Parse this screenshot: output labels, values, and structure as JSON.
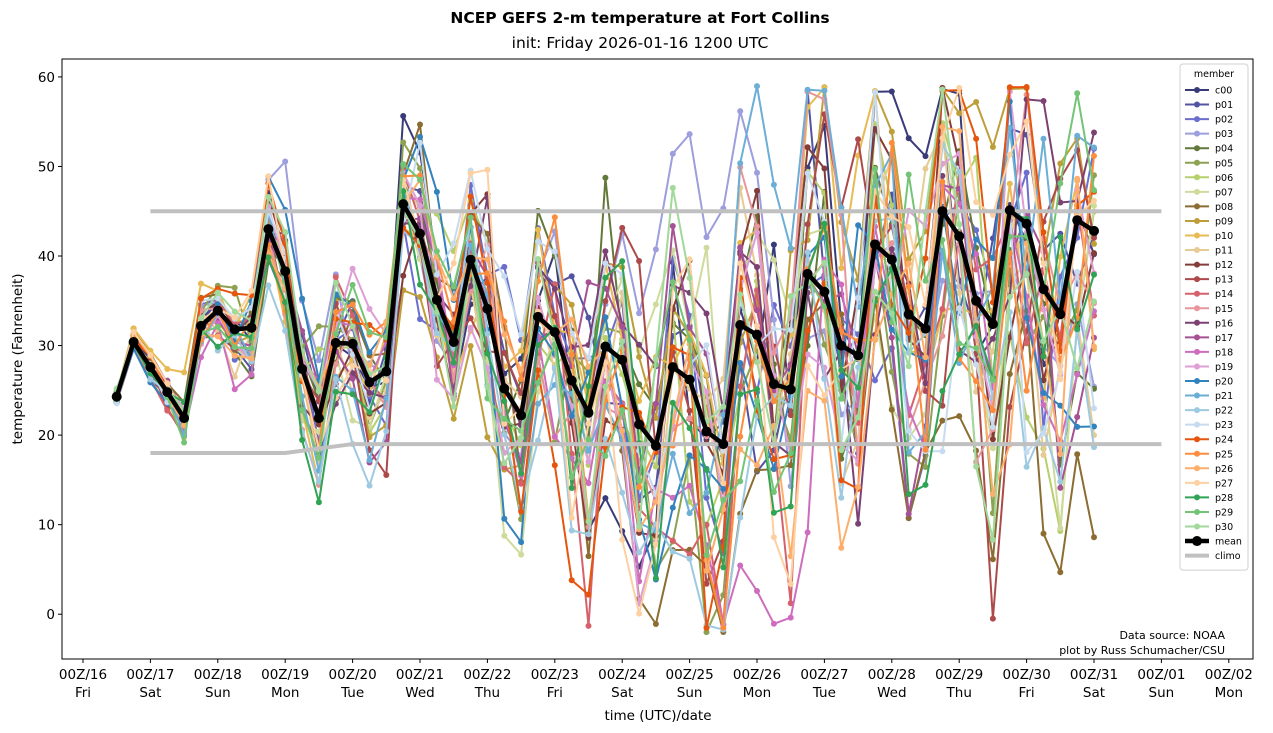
{
  "chart_data": {
    "type": "line",
    "title": "NCEP GEFS 2-m temperature at Fort Collins",
    "subtitle": "init: Friday 2026-01-16 1200 UTC",
    "xlabel": "time (UTC)/date",
    "ylabel": "temperature (Fahrenheit)",
    "ylim": [
      -5,
      62
    ],
    "yticks": [
      0,
      10,
      20,
      30,
      40,
      50,
      60
    ],
    "xlim_days": [
      -0.3,
      17.3
    ],
    "xticks": [
      {
        "day": 0,
        "label": "00Z/16",
        "dow": "Fri"
      },
      {
        "day": 1,
        "label": "00Z/17",
        "dow": "Sat"
      },
      {
        "day": 2,
        "label": "00Z/18",
        "dow": "Sun"
      },
      {
        "day": 3,
        "label": "00Z/19",
        "dow": "Mon"
      },
      {
        "day": 4,
        "label": "00Z/20",
        "dow": "Tue"
      },
      {
        "day": 5,
        "label": "00Z/21",
        "dow": "Wed"
      },
      {
        "day": 6,
        "label": "00Z/22",
        "dow": "Thu"
      },
      {
        "day": 7,
        "label": "00Z/23",
        "dow": "Fri"
      },
      {
        "day": 8,
        "label": "00Z/24",
        "dow": "Sat"
      },
      {
        "day": 9,
        "label": "00Z/25",
        "dow": "Sun"
      },
      {
        "day": 10,
        "label": "00Z/26",
        "dow": "Mon"
      },
      {
        "day": 11,
        "label": "00Z/27",
        "dow": "Tue"
      },
      {
        "day": 12,
        "label": "00Z/28",
        "dow": "Wed"
      },
      {
        "day": 13,
        "label": "00Z/29",
        "dow": "Thu"
      },
      {
        "day": 14,
        "label": "00Z/30",
        "dow": "Fri"
      },
      {
        "day": 15,
        "label": "00Z/31",
        "dow": "Sat"
      },
      {
        "day": 16,
        "label": "00Z/01",
        "dow": "Sun"
      },
      {
        "day": 17,
        "label": "00Z/02",
        "dow": "Mon"
      }
    ],
    "time_start_day": 0.5,
    "time_step_hours": 6,
    "mean": [
      24.3,
      30.4,
      27.6,
      24.8,
      21.9,
      32.2,
      33.9,
      31.8,
      32.0,
      43.0,
      38.3,
      27.4,
      21.9,
      30.3,
      30.2,
      25.9,
      27.1,
      45.8,
      42.5,
      35.1,
      30.4,
      39.6,
      34.1,
      25.2,
      22.2,
      33.2,
      31.5,
      26.1,
      22.5,
      29.9,
      28.4,
      21.2,
      18.8,
      27.6,
      26.2,
      20.4,
      19.0,
      32.3,
      31.2,
      25.7,
      25.1,
      38.0,
      36.0,
      30.0,
      28.9,
      41.3,
      39.6,
      33.5,
      31.9,
      45.0,
      42.2,
      35.0,
      32.4,
      45.1,
      43.6,
      36.3,
      33.5,
      44.0,
      42.8
    ],
    "climo": {
      "name": "climo",
      "color": "#c0c0c0",
      "points": [
        [
          1,
          45.0
        ],
        [
          16,
          45.0
        ]
      ],
      "low_points": [
        [
          1,
          18.0
        ],
        [
          3,
          18.0
        ],
        [
          4,
          19.0
        ],
        [
          16,
          19.0
        ]
      ]
    },
    "members": [
      {
        "name": "c00",
        "color": "#393b79"
      },
      {
        "name": "p01",
        "color": "#5254a3"
      },
      {
        "name": "p02",
        "color": "#6b6ecf"
      },
      {
        "name": "p03",
        "color": "#9c9ede"
      },
      {
        "name": "p04",
        "color": "#637939"
      },
      {
        "name": "p05",
        "color": "#8ca252"
      },
      {
        "name": "p06",
        "color": "#b5cf6b"
      },
      {
        "name": "p07",
        "color": "#cedb9c"
      },
      {
        "name": "p08",
        "color": "#8c6d31"
      },
      {
        "name": "p09",
        "color": "#bd9e39"
      },
      {
        "name": "p10",
        "color": "#e7ba52"
      },
      {
        "name": "p11",
        "color": "#e7cb94"
      },
      {
        "name": "p12",
        "color": "#843c39"
      },
      {
        "name": "p13",
        "color": "#ad494a"
      },
      {
        "name": "p14",
        "color": "#d6616b"
      },
      {
        "name": "p15",
        "color": "#e7969c"
      },
      {
        "name": "p16",
        "color": "#7b4173"
      },
      {
        "name": "p17",
        "color": "#a55194"
      },
      {
        "name": "p18",
        "color": "#ce6dbd"
      },
      {
        "name": "p19",
        "color": "#de9ed6"
      },
      {
        "name": "p20",
        "color": "#3182bd"
      },
      {
        "name": "p21",
        "color": "#6baed6"
      },
      {
        "name": "p22",
        "color": "#9ecae1"
      },
      {
        "name": "p23",
        "color": "#c6dbef"
      },
      {
        "name": "p24",
        "color": "#e6550d"
      },
      {
        "name": "p25",
        "color": "#fd8d3c"
      },
      {
        "name": "p26",
        "color": "#fdae6b"
      },
      {
        "name": "p27",
        "color": "#fdd0a2"
      },
      {
        "name": "p28",
        "color": "#31a354"
      },
      {
        "name": "p29",
        "color": "#74c476"
      },
      {
        "name": "p30",
        "color": "#a1d99b"
      }
    ],
    "mean_series": {
      "name": "mean",
      "color": "#000000"
    },
    "legend": {
      "title": "member",
      "placement": "right"
    },
    "annotations": [
      "Data source: NOAA",
      "plot by Russ Schumacher/CSU"
    ],
    "grid": false
  }
}
